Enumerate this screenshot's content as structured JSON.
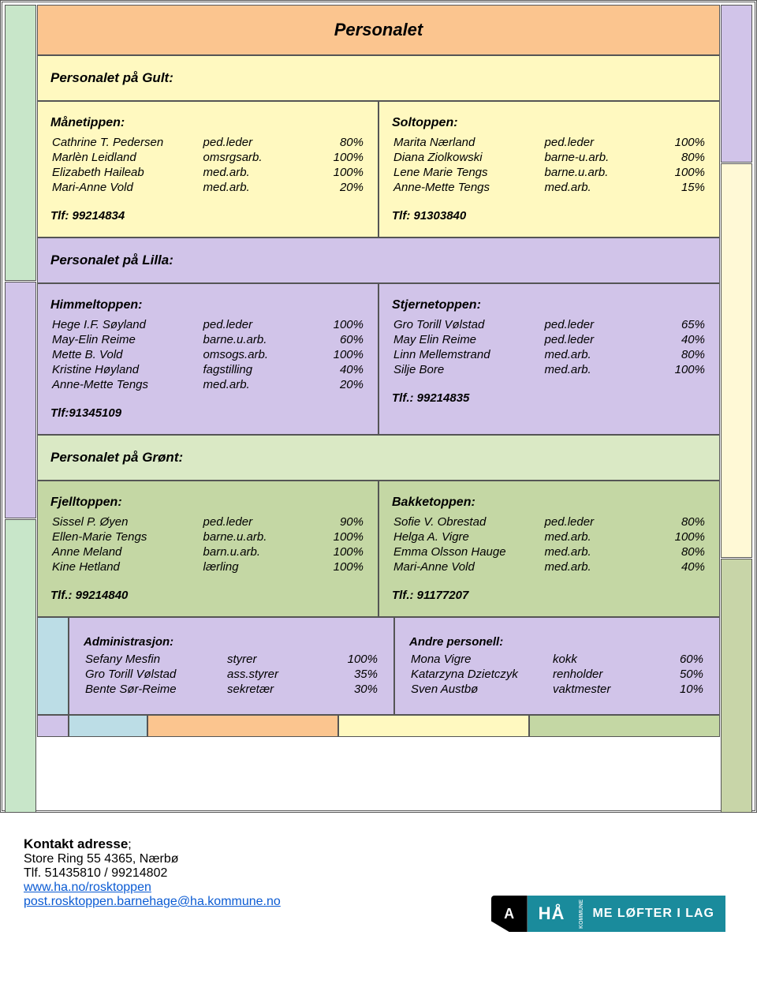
{
  "colors": {
    "orange": "#fbc58f",
    "yellow": "#fff9c0",
    "lilla": "#d1c4e9",
    "green": "#c4d7a4",
    "green_header": "#dae9c5",
    "blue": "#bcdde6",
    "border": "#555555",
    "link": "#0b5bd3",
    "brand": "#1a8b9c"
  },
  "title": "Personalet",
  "sections": {
    "gult": {
      "header": "Personalet på Gult:",
      "left": {
        "title": "Månetippen:",
        "rows": [
          [
            "Cathrine T. Pedersen",
            "ped.leder",
            "80%"
          ],
          [
            "Marlèn Leidland",
            "omsrgsarb.",
            "100%"
          ],
          [
            "Elizabeth Haileab",
            "med.arb.",
            "100%"
          ],
          [
            "Mari-Anne Vold",
            "med.arb.",
            "20%"
          ]
        ],
        "phone": "Tlf: 99214834"
      },
      "right": {
        "title": "Soltoppen:",
        "rows": [
          [
            "Marita Nærland",
            "ped.leder",
            "100%"
          ],
          [
            "Diana Ziolkowski",
            "barne-u.arb.",
            "80%"
          ],
          [
            "Lene Marie Tengs",
            "barne.u.arb.",
            "100%"
          ],
          [
            "Anne-Mette Tengs",
            "med.arb.",
            "15%"
          ]
        ],
        "phone": "Tlf: 91303840"
      }
    },
    "lilla": {
      "header": "Personalet på Lilla:",
      "left": {
        "title": "Himmeltoppen:",
        "rows": [
          [
            "Hege I.F. Søyland",
            "ped.leder",
            "100%"
          ],
          [
            "May-Elin Reime",
            "barne.u.arb.",
            "60%"
          ],
          [
            "Mette B. Vold",
            "omsogs.arb.",
            "100%"
          ],
          [
            "Kristine Høyland",
            "fagstilling",
            "40%"
          ],
          [
            "Anne-Mette Tengs",
            "med.arb.",
            "20%"
          ]
        ],
        "phone": "Tlf:91345109"
      },
      "right": {
        "title": "Stjernetoppen:",
        "rows": [
          [
            "Gro Torill Vølstad",
            "ped.leder",
            "65%"
          ],
          [
            "May Elin Reime",
            "ped.leder",
            "40%"
          ],
          [
            "Linn Mellemstrand",
            "med.arb.",
            "80%"
          ],
          [
            "Silje Bore",
            "med.arb.",
            "100%"
          ]
        ],
        "phone": "Tlf.: 99214835"
      }
    },
    "gront": {
      "header": "Personalet på Grønt:",
      "left": {
        "title": "Fjelltoppen:",
        "rows": [
          [
            "Sissel P. Øyen",
            "ped.leder",
            "90%"
          ],
          [
            "Ellen-Marie Tengs",
            "barne.u.arb.",
            "100%"
          ],
          [
            "Anne Meland",
            "barn.u.arb.",
            "100%"
          ],
          [
            "Kine Hetland",
            "lærling",
            "100%"
          ]
        ],
        "phone": "Tlf.: 99214840"
      },
      "right": {
        "title": "Bakketoppen:",
        "rows": [
          [
            "Sofie V. Obrestad",
            "ped.leder",
            "80%"
          ],
          [
            "Helga A. Vigre",
            "med.arb.",
            "100%"
          ],
          [
            "Emma Olsson Hauge",
            "med.arb.",
            "80%"
          ],
          [
            "Mari-Anne Vold",
            "med.arb.",
            "40%"
          ]
        ],
        "phone": "Tlf.: 91177207"
      }
    },
    "admin": {
      "left": {
        "title": "Administrasjon:",
        "rows": [
          [
            "Sefany Mesfin",
            "styrer",
            "100%"
          ],
          [
            "Gro Torill Vølstad",
            "ass.styrer",
            "35%"
          ],
          [
            "Bente Sør-Reime",
            "sekretær",
            "30%"
          ]
        ]
      },
      "right": {
        "title": "Andre personell:",
        "rows": [
          [
            "Mona Vigre",
            "kokk",
            "60%"
          ],
          [
            "Katarzyna Dzietczyk",
            "renholder",
            "50%"
          ],
          [
            "Sven Austbø",
            "vaktmester",
            "10%"
          ]
        ]
      }
    }
  },
  "contact": {
    "heading": "Kontakt adresse",
    "sep": ";",
    "address": "Store Ring 55 4365, Nærbø",
    "phone": "Tlf. 51435810 / 99214802",
    "url": "www.ha.no/rosktoppen",
    "email": "post.rosktoppen.barnehage@ha.kommune.no"
  },
  "logo": {
    "badge": "A",
    "name": "HÅ",
    "vert": "KOMMUNE",
    "tagline": "ME LØFTER I LAG"
  }
}
